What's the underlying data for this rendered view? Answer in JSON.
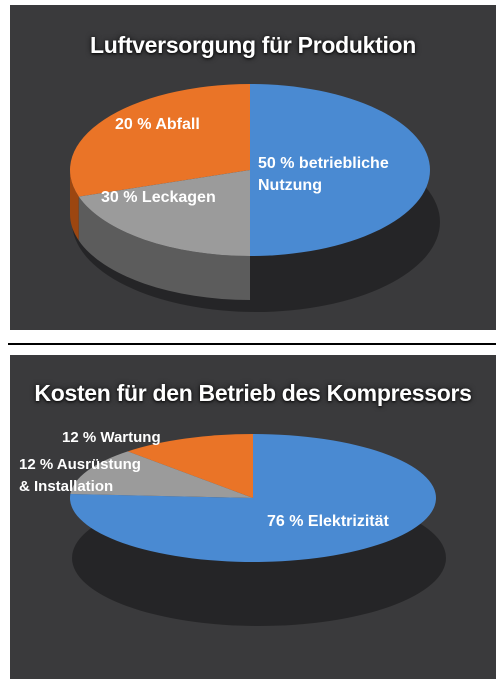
{
  "chart_data": [
    {
      "type": "pie",
      "title": "Luftversorgung für Produktion",
      "slices": [
        {
          "label_lines": [
            "50 % betriebliche",
            "Nutzung"
          ],
          "value": 50,
          "color": "#4a8ad2",
          "side_color": "#1f466f"
        },
        {
          "label_lines": [
            "30 % Leckagen"
          ],
          "value": 30,
          "color": "#ea7427",
          "side_color": "#9c4610"
        },
        {
          "label_lines": [
            "20 % Abfall"
          ],
          "value": 20,
          "color": "#9b9b9b",
          "side_color": "#5c5c5c"
        }
      ]
    },
    {
      "type": "pie",
      "title": "Kosten für den Betrieb des Kompressors",
      "slices": [
        {
          "label_lines": [
            "76 % Elektrizität"
          ],
          "value": 76,
          "color": "#4a8ad2",
          "side_color": "#1f466f"
        },
        {
          "label_lines": [
            "12 % Ausrüstung",
            "& Installation"
          ],
          "value": 12,
          "color": "#ea7427",
          "side_color": "#9c4610"
        },
        {
          "label_lines": [
            "12 % Wartung"
          ],
          "value": 12,
          "color": "#9b9b9b",
          "side_color": "#5c5c5c"
        }
      ]
    }
  ]
}
